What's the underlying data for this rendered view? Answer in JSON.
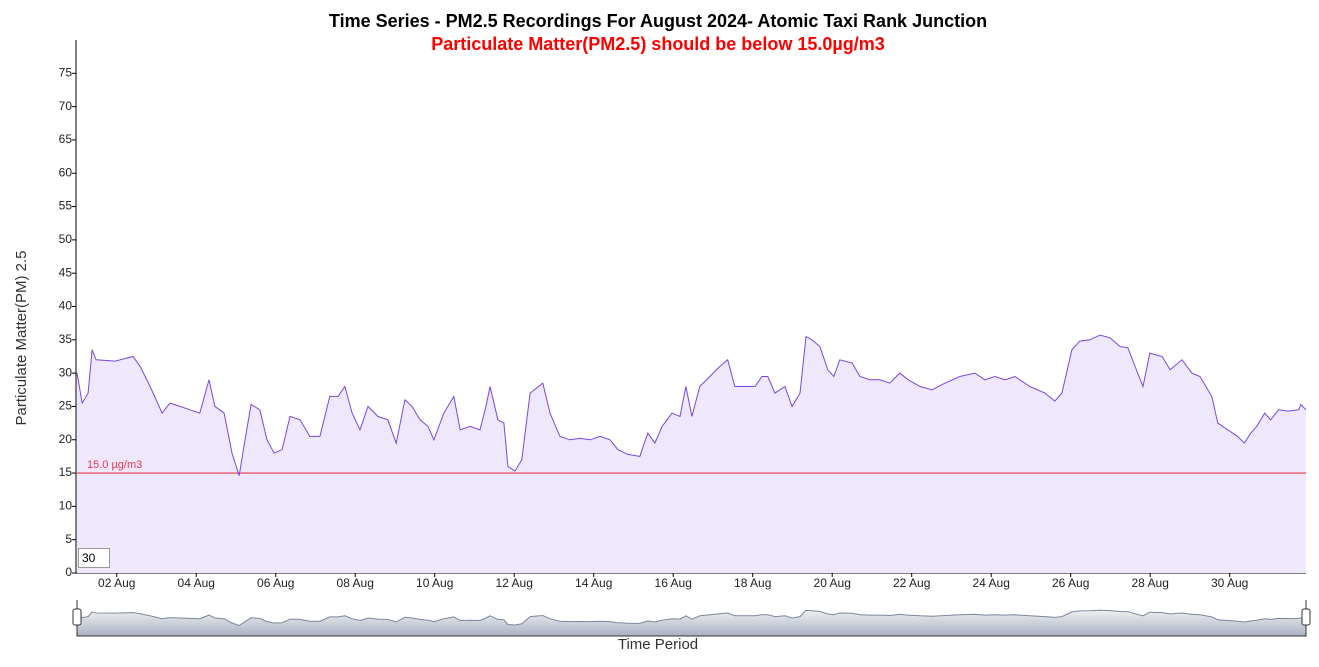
{
  "chart_data": {
    "type": "line",
    "title": "Time Series - PM2.5 Recordings For August 2024- Atomic Taxi Rank Junction",
    "subtitle": "Particulate Matter(PM2.5) should be below 15.0µg/m3",
    "y_label": "Particulate Matter(PM) 2.5",
    "x_label": "Time Period",
    "color": "#7b45e0",
    "fill_color": "#efe8fc",
    "rolling_period": 30,
    "threshold": {
      "value": 15,
      "label": "15.0 µg/m3",
      "color": "#e8384f"
    },
    "xlim": [
      1,
      31.92
    ],
    "ylim": [
      0,
      80
    ],
    "yticks": [
      0,
      5,
      10,
      15,
      20,
      25,
      30,
      35,
      40,
      45,
      50,
      55,
      60,
      65,
      70,
      75
    ],
    "xticks": [
      {
        "value": 2,
        "label": "02 Aug"
      },
      {
        "value": 4,
        "label": "04 Aug"
      },
      {
        "value": 6,
        "label": "06 Aug"
      },
      {
        "value": 8,
        "label": "08 Aug"
      },
      {
        "value": 10,
        "label": "10 Aug"
      },
      {
        "value": 12,
        "label": "12 Aug"
      },
      {
        "value": 14,
        "label": "14 Aug"
      },
      {
        "value": 16,
        "label": "16 Aug"
      },
      {
        "value": 18,
        "label": "18 Aug"
      },
      {
        "value": 20,
        "label": "20 Aug"
      },
      {
        "value": 22,
        "label": "22 Aug"
      },
      {
        "value": 24,
        "label": "24 Aug"
      },
      {
        "value": 26,
        "label": "26 Aug"
      },
      {
        "value": 28,
        "label": "28 Aug"
      },
      {
        "value": 30,
        "label": "30 Aug"
      }
    ],
    "x": [
      1.0,
      1.13,
      1.28,
      1.38,
      1.48,
      1.96,
      2.41,
      2.59,
      2.84,
      3.14,
      3.34,
      3.59,
      3.84,
      4.09,
      4.32,
      4.47,
      4.7,
      4.9,
      5.08,
      5.2,
      5.38,
      5.6,
      5.78,
      5.96,
      6.16,
      6.36,
      6.61,
      6.86,
      7.11,
      7.36,
      7.57,
      7.74,
      7.92,
      8.12,
      8.32,
      8.57,
      8.82,
      9.03,
      9.25,
      9.43,
      9.63,
      9.83,
      9.98,
      10.23,
      10.48,
      10.64,
      10.89,
      11.14,
      11.29,
      11.39,
      11.59,
      11.74,
      11.84,
      12.02,
      12.19,
      12.4,
      12.72,
      12.9,
      13.15,
      13.4,
      13.65,
      13.91,
      14.16,
      14.41,
      14.61,
      14.86,
      15.16,
      15.36,
      15.54,
      15.72,
      15.97,
      16.17,
      16.32,
      16.47,
      16.67,
      16.92,
      17.17,
      17.37,
      17.55,
      17.8,
      18.06,
      18.23,
      18.38,
      18.56,
      18.81,
      18.99,
      19.19,
      19.34,
      19.49,
      19.69,
      19.89,
      20.04,
      20.19,
      20.5,
      20.7,
      20.95,
      21.2,
      21.45,
      21.7,
      21.91,
      22.21,
      22.51,
      22.84,
      23.21,
      23.59,
      23.84,
      24.09,
      24.35,
      24.6,
      24.97,
      25.35,
      25.6,
      25.78,
      26.03,
      26.23,
      26.48,
      26.74,
      26.99,
      27.24,
      27.44,
      27.62,
      27.82,
      27.99,
      28.3,
      28.5,
      28.8,
      29.05,
      29.25,
      29.55,
      29.7,
      29.95,
      30.2,
      30.37,
      30.53,
      30.68,
      30.88,
      31.03,
      31.23,
      31.48,
      31.74,
      31.79,
      31.92
    ],
    "values": [
      30,
      25.5,
      27,
      33.5,
      32,
      31.8,
      32.5,
      31,
      28,
      24,
      25.5,
      25,
      24.5,
      24,
      29,
      25,
      24,
      18,
      14.6,
      19,
      25.3,
      24.5,
      20,
      18,
      18.5,
      23.5,
      23,
      20.5,
      20.5,
      26.5,
      26.5,
      28,
      24,
      21.5,
      25,
      23.5,
      23,
      19.5,
      26,
      25,
      23,
      22,
      20,
      24,
      26.5,
      21.5,
      22,
      21.5,
      25,
      28,
      23,
      22.5,
      16,
      15.3,
      17,
      27,
      28.5,
      24,
      20.5,
      20,
      20.2,
      20,
      20.5,
      20,
      18.5,
      17.8,
      17.5,
      21,
      19.5,
      22,
      24,
      23.5,
      28,
      23.5,
      28,
      29.5,
      31,
      32,
      28,
      28,
      28,
      29.5,
      29.5,
      27,
      28,
      25,
      27,
      35.5,
      35,
      34,
      30.5,
      29.5,
      32,
      31.5,
      29.5,
      29,
      29,
      28.5,
      30,
      29,
      28,
      27.5,
      28.5,
      29.5,
      30,
      29,
      29.5,
      29,
      29.5,
      28,
      27,
      25.8,
      27,
      33.5,
      34.8,
      35,
      35.7,
      35.3,
      34,
      33.8,
      31,
      28,
      33,
      32.5,
      30.5,
      32,
      30,
      29.5,
      26.5,
      22.5,
      21.5,
      20.5,
      19.5,
      21,
      22,
      24,
      23,
      24.5,
      24.3,
      24.5,
      25.3,
      24.5
    ]
  }
}
